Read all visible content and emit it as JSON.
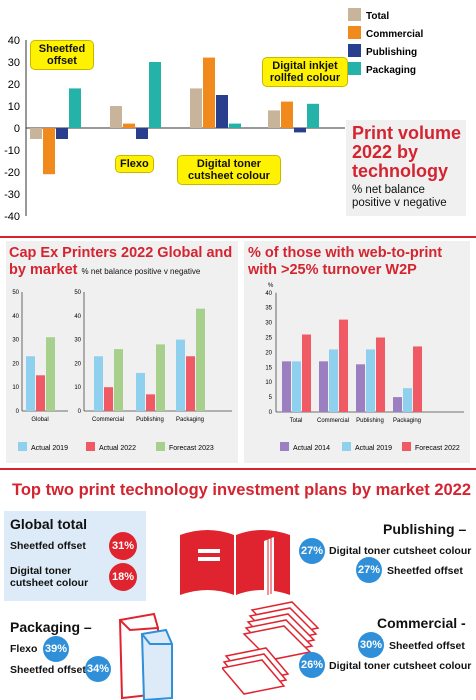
{
  "chart_data": [
    {
      "type": "bar",
      "title": "Print volume 2022 by technology",
      "subtitle": "% net balance positive v negative",
      "categories": [
        "Sheetfed offset",
        "Flexo",
        "Digital toner cutsheet colour",
        "Digital inkjet rollfed colour"
      ],
      "series": [
        {
          "name": "Total",
          "values": [
            -5,
            10,
            18,
            8
          ]
        },
        {
          "name": "Commercial",
          "values": [
            -21,
            2,
            32,
            12
          ]
        },
        {
          "name": "Publishing",
          "values": [
            -5,
            -5,
            15,
            -2
          ]
        },
        {
          "name": "Packaging",
          "values": [
            18,
            30,
            2,
            11
          ]
        }
      ],
      "ylim": [
        -40,
        40
      ],
      "yticks": [
        40,
        30,
        20,
        10,
        0,
        -10,
        -20,
        -30,
        -40
      ],
      "colors": [
        "#c8b49a",
        "#f08a1d",
        "#283e8f",
        "#25b3a9"
      ],
      "legend": "top-right",
      "grid": false
    },
    {
      "type": "bar",
      "title": "Cap Ex Printers 2022 Global and by market",
      "subtitle": "% net balance positive v negative",
      "categories": [
        "Global",
        "Commercial",
        "Publishing",
        "Packaging"
      ],
      "series": [
        {
          "name": "Actual 2019",
          "values": [
            23,
            23,
            16,
            30
          ]
        },
        {
          "name": "Actual 2022",
          "values": [
            15,
            10,
            7,
            23
          ]
        },
        {
          "name": "Forecast 2023",
          "values": [
            31,
            26,
            28,
            43
          ]
        }
      ],
      "ylim": [
        0,
        50
      ],
      "yticks": [
        0,
        10,
        20,
        30,
        40,
        50
      ],
      "colors": [
        "#8fd0ef",
        "#ef5a64",
        "#a8d08d"
      ],
      "legend": "bottom",
      "grid": false
    },
    {
      "type": "bar",
      "title": "% of those with web-to-print with >25% turnover W2P",
      "ylabel": "%",
      "categories": [
        "Total",
        "Commercial",
        "Publishing",
        "Packaging"
      ],
      "series": [
        {
          "name": "Actual 2014",
          "values": [
            17,
            17,
            16,
            5
          ]
        },
        {
          "name": "Actual 2019",
          "values": [
            17,
            21,
            21,
            8
          ]
        },
        {
          "name": "Forecast 2022",
          "values": [
            26,
            31,
            25,
            22
          ]
        }
      ],
      "ylim": [
        0,
        40
      ],
      "yticks": [
        0,
        5,
        10,
        15,
        20,
        25,
        30,
        35,
        40
      ],
      "colors": [
        "#9b7fc1",
        "#8fd0ef",
        "#ef5a64"
      ],
      "legend": "bottom",
      "grid": false
    }
  ],
  "infographic": {
    "title": "Top two print technology investment plans by market 2022",
    "global": {
      "heading": "Global total",
      "items": [
        {
          "label": "Sheetfed offset",
          "pct": "31%"
        },
        {
          "label": "Digital toner cutsheet colour",
          "pct": "18%"
        }
      ]
    },
    "publishing": {
      "heading": "Publishing –",
      "items": [
        {
          "label": "Digital toner cutsheet colour",
          "pct": "27%"
        },
        {
          "label": "Sheetfed offset",
          "pct": "27%"
        }
      ]
    },
    "packaging": {
      "heading": "Packaging –",
      "items": [
        {
          "label": "Flexo",
          "pct": "39%"
        },
        {
          "label": "Sheetfed offset",
          "pct": "34%"
        }
      ]
    },
    "commercial": {
      "heading": "Commercial -",
      "items": [
        {
          "label": "Sheetfed offset",
          "pct": "30%"
        },
        {
          "label": "Digital toner cutsheet colour",
          "pct": "26%"
        }
      ]
    }
  }
}
